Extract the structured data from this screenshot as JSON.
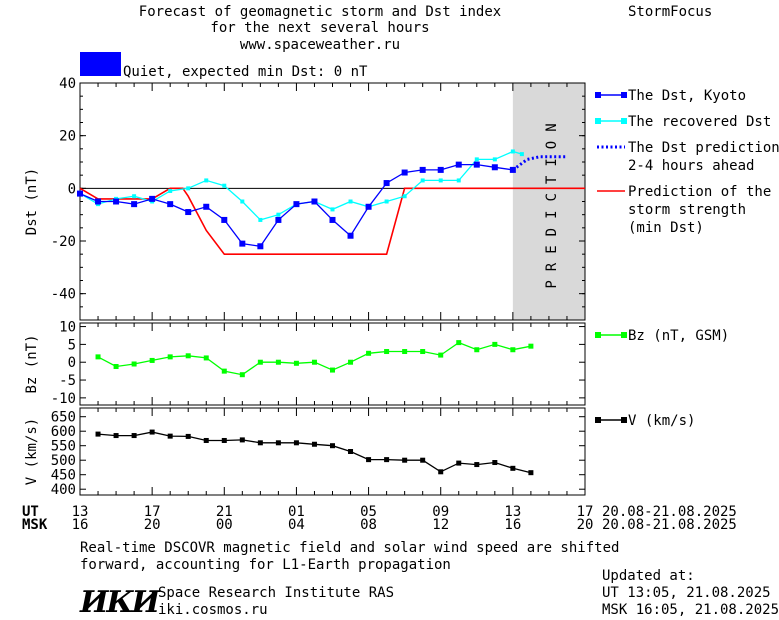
{
  "header": {
    "title_line1": "Forecast of geomagnetic storm and Dst index",
    "title_line2": "for the next several hours",
    "url": "www.spaceweather.ru",
    "brand": "StormFocus"
  },
  "status": {
    "quiet_label": "Quiet, expected min Dst: 0 nT",
    "quiet_color": "#0000ff"
  },
  "prediction_band_text": "PREDICTION",
  "footer": {
    "note_line1": "Real-time DSCOVR magnetic field and solar wind speed are shifted",
    "note_line2": "forward, accounting for L1-Earth propagation",
    "institute": "Space Research Institute RAS",
    "site": "iki.cosmos.ru",
    "logo_text": "ИКИ",
    "updated_label": "Updated at:",
    "updated_ut": "UT   13:05, 21.08.2025",
    "updated_msk": "MSK 16:05, 21.08.2025"
  },
  "time_axis": {
    "ut_label": "UT",
    "msk_label": "MSK",
    "ut_ticks": [
      "13",
      "17",
      "21",
      "01",
      "05",
      "09",
      "13",
      "17"
    ],
    "msk_ticks": [
      "16",
      "20",
      "00",
      "04",
      "08",
      "12",
      "16",
      "20"
    ],
    "ut_range": "20.08-21.08.2025",
    "msk_range": "20.08-21.08.2025"
  },
  "colors": {
    "dst_kyoto": "#0000ff",
    "dst_recovered": "#00ffff",
    "storm_strength": "#ff0000",
    "bz": "#00ff00",
    "v": "#000000",
    "prediction_band": "#d9d9d9"
  },
  "chart_data": [
    {
      "type": "line",
      "ylabel": "Dst (nT)",
      "ylim": [
        -50,
        40
      ],
      "yticks": [
        40,
        20,
        0,
        -20,
        -40
      ],
      "xlim_hours": [
        0,
        28
      ],
      "prediction_start_hour": 24,
      "series": [
        {
          "name": "The Dst, Kyoto",
          "x": [
            0,
            1,
            2,
            3,
            4,
            5,
            6,
            7,
            8,
            9,
            10,
            11,
            12,
            13,
            14,
            15,
            16,
            17,
            18,
            19,
            20,
            21,
            22,
            23,
            24
          ],
          "y": [
            -2,
            -5,
            -5,
            -6,
            -4,
            -6,
            -9,
            -7,
            -12,
            -21,
            -22,
            -12,
            -6,
            -5,
            -12,
            -18,
            -7,
            2,
            6,
            7,
            7,
            9,
            9,
            8,
            7
          ]
        },
        {
          "name": "The recovered Dst",
          "x": [
            0,
            1,
            2,
            3,
            4,
            5,
            6,
            7,
            8,
            9,
            10,
            11,
            12,
            13,
            14,
            15,
            16,
            17,
            18,
            19,
            20,
            21,
            22,
            23,
            24,
            24.5
          ],
          "y": [
            -2,
            -6,
            -4,
            -3,
            -5,
            -1,
            0,
            3,
            1,
            -5,
            -12,
            -10,
            -6,
            -5,
            -8,
            -5,
            -7,
            -5,
            -3,
            3,
            3,
            3,
            11,
            11,
            14,
            13
          ]
        },
        {
          "name": "The Dst prediction\n2-4 hours ahead",
          "x": [
            24,
            24.8,
            25.5,
            26,
            27
          ],
          "y": [
            7,
            11,
            12,
            12,
            12
          ]
        },
        {
          "name": "Prediction of the\nstorm strength\n(min Dst)",
          "x": [
            0,
            1,
            4,
            5,
            5.7,
            6,
            7,
            8,
            17,
            18,
            28
          ],
          "y": [
            0,
            -4,
            -4,
            0,
            0,
            -3,
            -16,
            -25,
            -25,
            0,
            0
          ]
        }
      ]
    },
    {
      "type": "line",
      "ylabel": "Bz (nT)",
      "ylim": [
        -12,
        11
      ],
      "yticks": [
        10,
        5,
        0,
        -5,
        -10
      ],
      "series": [
        {
          "name": "Bz (nT, GSM)",
          "x": [
            1,
            2,
            3,
            4,
            5,
            6,
            7,
            8,
            9,
            10,
            11,
            12,
            13,
            14,
            15,
            16,
            17,
            18,
            19,
            20,
            21,
            22,
            23,
            24,
            25
          ],
          "y": [
            1.5,
            -1.2,
            -0.5,
            0.5,
            1.5,
            1.8,
            1.2,
            -2.5,
            -3.5,
            0,
            0,
            -0.3,
            0,
            -2.2,
            0,
            2.5,
            3,
            3,
            3,
            2,
            5.5,
            3.5,
            5,
            3.5,
            4.5
          ]
        }
      ]
    },
    {
      "type": "line",
      "ylabel": "V (km/s)",
      "ylim": [
        380,
        680
      ],
      "yticks": [
        650,
        600,
        550,
        500,
        450,
        400
      ],
      "ytick_labels": [
        "650",
        "600",
        "550",
        "500",
        "450",
        "400"
      ],
      "series": [
        {
          "name": "V (km/s)",
          "x": [
            1,
            2,
            3,
            4,
            5,
            6,
            7,
            8,
            9,
            10,
            11,
            12,
            13,
            14,
            15,
            16,
            17,
            18,
            19,
            20,
            21,
            22,
            23,
            24,
            25
          ],
          "y": [
            590,
            585,
            585,
            597,
            583,
            582,
            568,
            568,
            570,
            560,
            560,
            560,
            555,
            550,
            530,
            502,
            502,
            500,
            500,
            460,
            490,
            485,
            492,
            472,
            457
          ]
        }
      ]
    }
  ]
}
